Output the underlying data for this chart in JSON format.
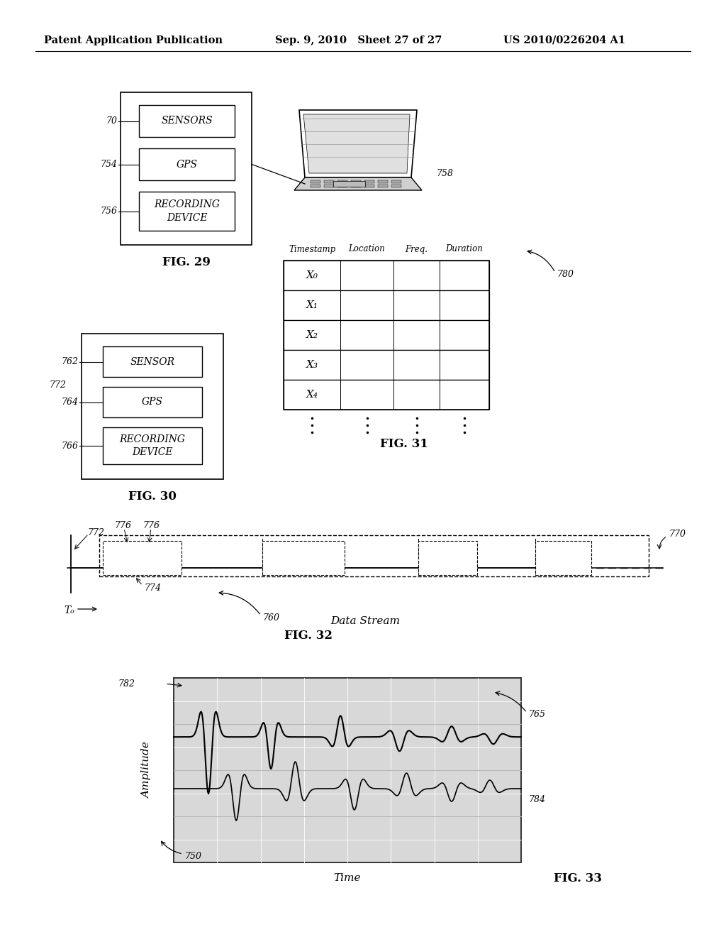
{
  "bg_color": "#ffffff",
  "header_left": "Patent Application Publication",
  "header_mid": "Sep. 9, 2010   Sheet 27 of 27",
  "header_right": "US 2010/0226204 A1",
  "fig29_label": "FIG. 29",
  "fig30_label": "FIG. 30",
  "fig31_label": "FIG. 31",
  "fig32_label": "FIG. 32",
  "fig33_label": "FIG. 33",
  "ref_750": "750",
  "ref_70": "70",
  "ref_754": "754",
  "ref_756": "756",
  "ref_758": "758",
  "ref_760": "760",
  "ref_762": "762",
  "ref_764": "764",
  "ref_766": "766",
  "ref_765": "765",
  "ref_770": "770",
  "ref_772": "772",
  "ref_774": "774",
  "ref_776a": "776",
  "ref_776b": "776",
  "ref_780": "780",
  "ref_782": "782",
  "ref_784": "784",
  "box1_sensors": "SENSORS",
  "box1_gps": "GPS",
  "box1_recording": "RECORDING\nDEVICE",
  "box2_sensor": "SENSOR",
  "box2_gps": "GPS",
  "box2_recording": "RECORDING\nDEVICE",
  "table_headers": [
    "Timestamp",
    "Location",
    "Freq.",
    "Duration"
  ],
  "table_rows": [
    "X₀",
    "X₁",
    "X₂",
    "X₃",
    "X₄"
  ],
  "data_stream_label": "Data Stream",
  "tc_label": "T₀",
  "amplitude_label": "Amplitude",
  "time_label": "Time",
  "grid_color": "#aaaaaa",
  "grid_dot_color": "#cccccc",
  "wave_bg": "#d8d8d8"
}
